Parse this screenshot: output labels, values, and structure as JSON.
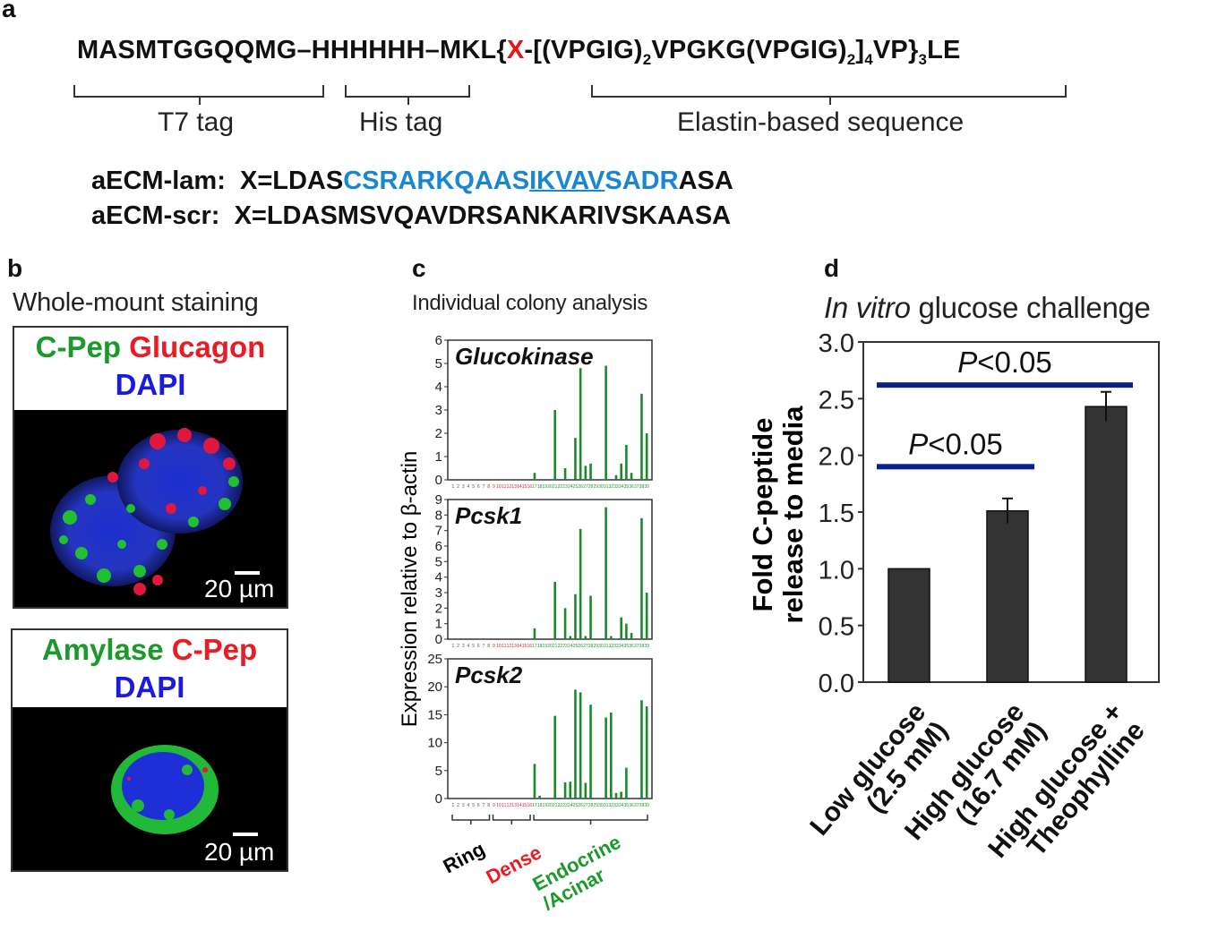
{
  "panels": {
    "a": "a",
    "b": "b",
    "c": "c",
    "d": "d"
  },
  "panel_a": {
    "seq_part1": "MASMTGGQQMG–HHHHHH–MKL{",
    "seq_x": "X",
    "seq_part2": "-[(VPGIG)",
    "sub1": "2",
    "seq_part3": "VPGKG(VPGIG)",
    "sub2": "2",
    "seq_part4": "]",
    "sub3": "4",
    "seq_part5": "VP}",
    "sub4": "3",
    "seq_part6": "LE",
    "t7_label": "T7 tag",
    "his_label": "His tag",
    "elastin_label": "Elastin-based sequence",
    "lam_name": "aECM-lam:",
    "lam_x1": "X=LDAS",
    "lam_blue1": "CSRARKQAAS",
    "lam_underlined": "IKVAV",
    "lam_blue2": "SADR",
    "lam_end": "ASA",
    "scr_name": "aECM-scr:",
    "scr_seq": "X=LDASMSVQAVDRSANKARIVSKAASA"
  },
  "panel_b": {
    "title": "Whole-mount staining",
    "top_label_green": "C-Pep",
    "top_label_red": "Glucagon",
    "top_label_blue": "DAPI",
    "top_scale": "20 µm",
    "bottom_label_green": "Amylase",
    "bottom_label_red": "C-Pep",
    "bottom_label_blue": "DAPI",
    "bottom_scale": "20 µm"
  },
  "panel_c": {
    "title": "Individual colony analysis",
    "ylabel": "Expression relative to β-actin",
    "groups": [
      {
        "name": "Ring",
        "color": "#000000"
      },
      {
        "name": "Dense",
        "color": "#e81c24"
      },
      {
        "name": "Endocrine\n/Acinar",
        "color": "#1a9a2a"
      }
    ],
    "bar_color": "#1a8a2a"
  },
  "chart_data": [
    {
      "type": "bar",
      "title": "Glucokinase",
      "ylim": [
        0,
        6
      ],
      "yticks": [
        0,
        1,
        2,
        3,
        4,
        5,
        6
      ],
      "x": [
        1,
        2,
        3,
        4,
        5,
        6,
        7,
        8,
        9,
        10,
        11,
        12,
        13,
        14,
        15,
        16,
        17,
        18,
        19,
        20,
        21,
        22,
        23,
        24,
        25,
        26,
        27,
        28,
        29,
        30,
        31,
        32,
        33,
        34,
        35,
        36,
        37,
        38,
        39
      ],
      "values": [
        0,
        0,
        0,
        0,
        0,
        0,
        0,
        0,
        0,
        0,
        0,
        0,
        0,
        0,
        0,
        0,
        0.3,
        0,
        0,
        0,
        3.0,
        0,
        0.5,
        0,
        1.8,
        4.8,
        0.6,
        0.7,
        0,
        0,
        4.9,
        0,
        0.2,
        0.7,
        1.5,
        0.3,
        0,
        3.7,
        2.0
      ]
    },
    {
      "type": "bar",
      "title": "Pcsk1",
      "ylim": [
        0,
        9
      ],
      "yticks": [
        0,
        1,
        2,
        3,
        4,
        5,
        6,
        7,
        8,
        9
      ],
      "x": [
        1,
        2,
        3,
        4,
        5,
        6,
        7,
        8,
        9,
        10,
        11,
        12,
        13,
        14,
        15,
        16,
        17,
        18,
        19,
        20,
        21,
        22,
        23,
        24,
        25,
        26,
        27,
        28,
        29,
        30,
        31,
        32,
        33,
        34,
        35,
        36,
        37,
        38,
        39
      ],
      "values": [
        0,
        0,
        0,
        0,
        0,
        0,
        0,
        0,
        0,
        0,
        0,
        0,
        0,
        0,
        0,
        0,
        0.7,
        0,
        0,
        0,
        3.7,
        0,
        2.0,
        0.2,
        2.9,
        7.1,
        0.2,
        2.8,
        0,
        0,
        8.5,
        0.2,
        0,
        1.4,
        1.0,
        0.4,
        0,
        7.8,
        3.0
      ]
    },
    {
      "type": "bar",
      "title": "Pcsk2",
      "ylim": [
        0,
        25
      ],
      "yticks": [
        0,
        5,
        10,
        15,
        20,
        25
      ],
      "x": [
        1,
        2,
        3,
        4,
        5,
        6,
        7,
        8,
        9,
        10,
        11,
        12,
        13,
        14,
        15,
        16,
        17,
        18,
        19,
        20,
        21,
        22,
        23,
        24,
        25,
        26,
        27,
        28,
        29,
        30,
        31,
        32,
        33,
        34,
        35,
        36,
        37,
        38,
        39
      ],
      "values": [
        0,
        0,
        0,
        0,
        0,
        0,
        0,
        0,
        0,
        0,
        0,
        0,
        0,
        0,
        0,
        0,
        6.2,
        0.5,
        0,
        0,
        14.8,
        0,
        2.9,
        3.0,
        19.5,
        19.0,
        2.8,
        16.8,
        0,
        0,
        14.5,
        15.4,
        1.0,
        1.2,
        5.5,
        0,
        0,
        17.6,
        16.5
      ]
    },
    {
      "type": "bar",
      "title": "In vitro glucose challenge",
      "title_italic": "In vitro",
      "title_rest": "glucose challenge",
      "ylabel": "Fold C-peptide\nrelease to media",
      "ylim": [
        0,
        3
      ],
      "yticks": [
        "0.0",
        "0.5",
        "1.0",
        "1.5",
        "2.0",
        "2.5",
        "3.0"
      ],
      "categories": [
        "Low glucose\n(2.5 mM)",
        "High glucose\n(16.7 mM)",
        "High glucose +\nTheophylline"
      ],
      "values": [
        1.0,
        1.51,
        2.43
      ],
      "errors": [
        0,
        0.11,
        0.13
      ],
      "bar_color": "#333333",
      "significance": [
        {
          "label": "P<0.05",
          "from": 0,
          "to": 1,
          "level": 1.9
        },
        {
          "label": "P<0.05",
          "from": 0,
          "to": 2,
          "level": 2.62
        }
      ],
      "sig_color": "#0d1f8c"
    }
  ]
}
